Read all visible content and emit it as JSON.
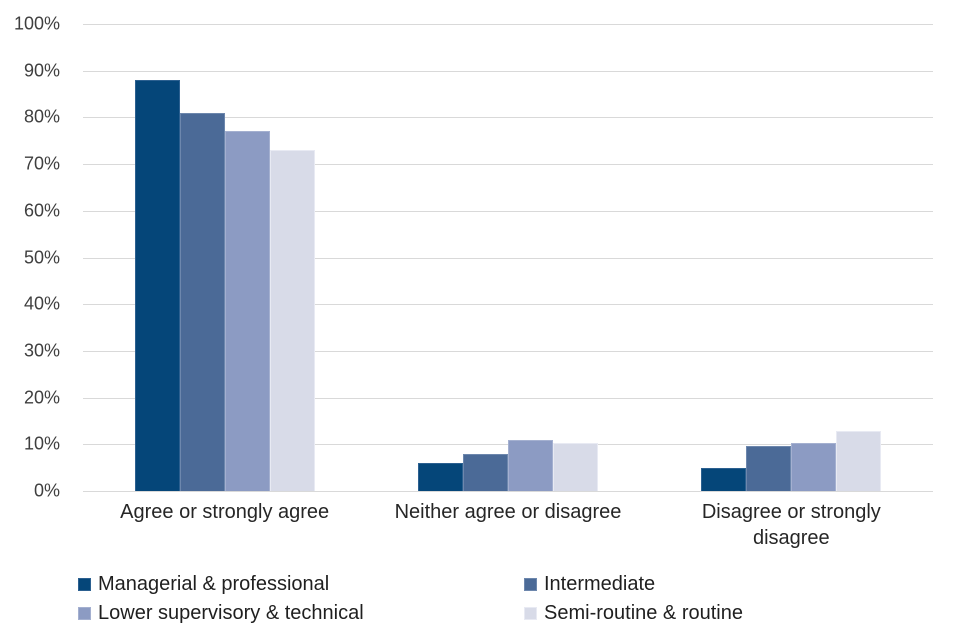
{
  "chart_data": {
    "type": "bar",
    "title": "",
    "xlabel": "",
    "ylabel": "",
    "categories": [
      "Agree or strongly agree",
      "Neither agree or disagree",
      "Disagree or strongly disagree"
    ],
    "series": [
      {
        "name": "Managerial & professional",
        "color": "#054679",
        "border_color": "#2c6090",
        "values": [
          88,
          6,
          5
        ]
      },
      {
        "name": "Intermediate",
        "color": "#4b6a97",
        "border_color": "#6d87ad",
        "values": [
          81,
          8,
          9.7
        ]
      },
      {
        "name": "Lower supervisory & technical",
        "color": "#8c9bc3",
        "border_color": "#a4b0d0",
        "values": [
          77,
          10.9,
          10.3
        ]
      },
      {
        "name": "Semi-routine & routine",
        "color": "#d8dbe8",
        "border_color": "#e8eaf3",
        "values": [
          73,
          10.3,
          12.8
        ]
      }
    ],
    "ylim": [
      0,
      100
    ],
    "yticks": [
      0,
      10,
      20,
      30,
      40,
      50,
      60,
      70,
      80,
      90,
      100
    ],
    "ytick_labels": [
      "0%",
      "10%",
      "20%",
      "30%",
      "40%",
      "50%",
      "60%",
      "70%",
      "80%",
      "90%",
      "100%"
    ],
    "grid": true,
    "legend_position": "bottom",
    "colors": {
      "background": "#ffffff",
      "gridline": "#d9d9d9",
      "axis_text": "#3f3f3f",
      "label_text": "#262626"
    }
  }
}
